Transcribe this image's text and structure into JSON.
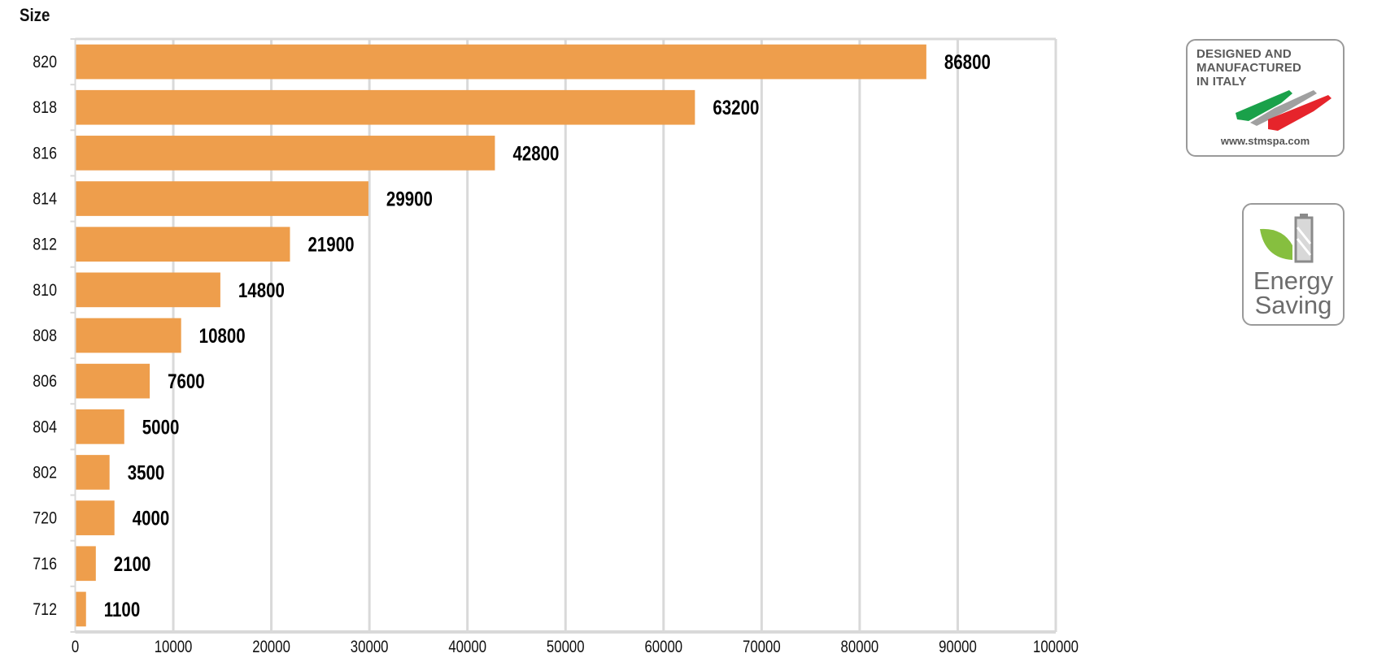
{
  "chart_data": {
    "type": "bar",
    "orientation": "horizontal",
    "title": "",
    "ylabel": "Size",
    "xlabel": "",
    "categories": [
      "820",
      "818",
      "816",
      "814",
      "812",
      "810",
      "808",
      "806",
      "804",
      "802",
      "720",
      "716",
      "712"
    ],
    "values": [
      86800,
      63200,
      42800,
      29900,
      21900,
      14800,
      10800,
      7600,
      5000,
      3500,
      4000,
      2100,
      1100
    ],
    "xlim": [
      0,
      100000
    ],
    "xticks": [
      0,
      10000,
      20000,
      30000,
      40000,
      50000,
      60000,
      70000,
      80000,
      90000,
      100000
    ],
    "grid": true,
    "data_labels": true,
    "bar_color": "#EE9E4C",
    "grid_color": "#D9D9D9"
  },
  "logos": {
    "italy": {
      "lines": [
        "DESIGNED AND",
        "MANUFACTURED",
        "IN ITALY"
      ],
      "url": "www.stmspa.com",
      "colors": {
        "green": "#1AA14A",
        "white": "#A0A0A0",
        "red": "#E6242B"
      }
    },
    "energy": {
      "lines": [
        "Energy",
        "Saving"
      ],
      "colors": {
        "leaf": "#86BF3F",
        "battery": "#8A8A8A"
      }
    }
  }
}
